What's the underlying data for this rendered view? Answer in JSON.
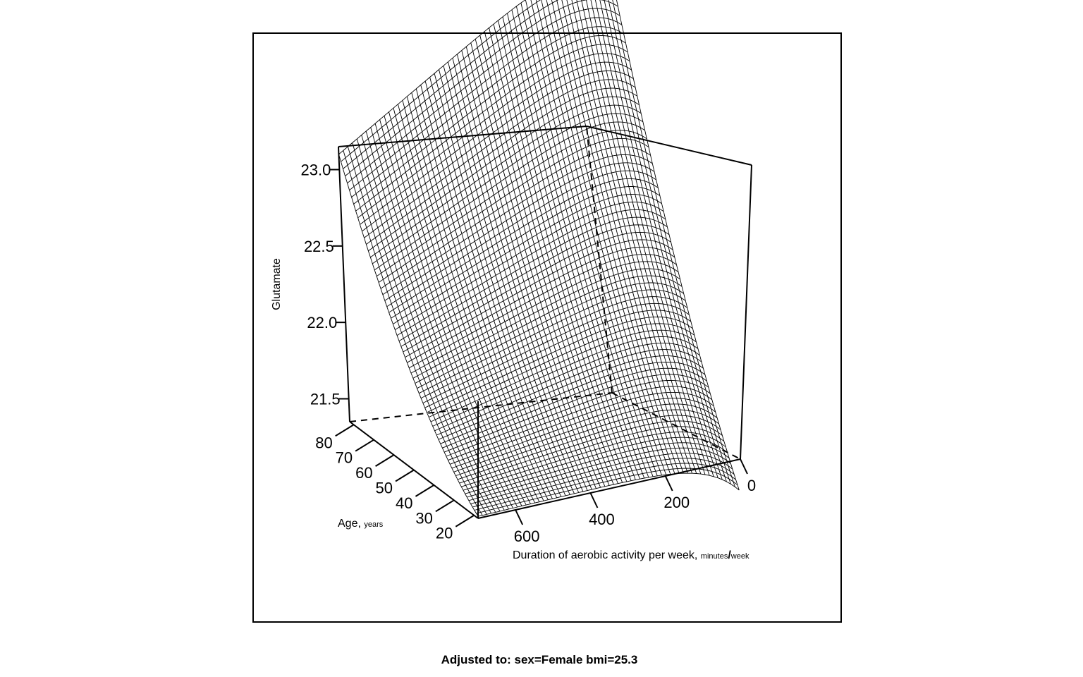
{
  "chart_data": {
    "type": "surface",
    "zlabel": "Glutamate",
    "xlabel_main": "Duration of aerobic activity per week, ",
    "xlabel_unit_num": "minutes",
    "xlabel_unit_sep": "/",
    "xlabel_unit_den": "week",
    "ylabel_main": "Age, ",
    "ylabel_unit": "years",
    "x_ticks": [
      "0",
      "200",
      "400",
      "600"
    ],
    "y_ticks": [
      "20",
      "30",
      "40",
      "50",
      "60",
      "70",
      "80"
    ],
    "z_ticks": [
      "21.5",
      "22.0",
      "22.5",
      "23.0"
    ],
    "x_range": [
      0,
      700
    ],
    "y_range": [
      18,
      82
    ],
    "z_range": [
      21.35,
      23.15
    ],
    "surface": {
      "description_values": "Glutamate rises with age (about 21.4 at age 18 to about 23.1 at age 82) and is nearly flat in duration beyond ~50 minutes/week, with a sharp rise near 0 minutes/week.",
      "age_min_value": 21.38,
      "age_max_value": 23.1
    },
    "box": true,
    "grid": false,
    "caption": "Adjusted to: sex=Female bmi=25.3"
  }
}
